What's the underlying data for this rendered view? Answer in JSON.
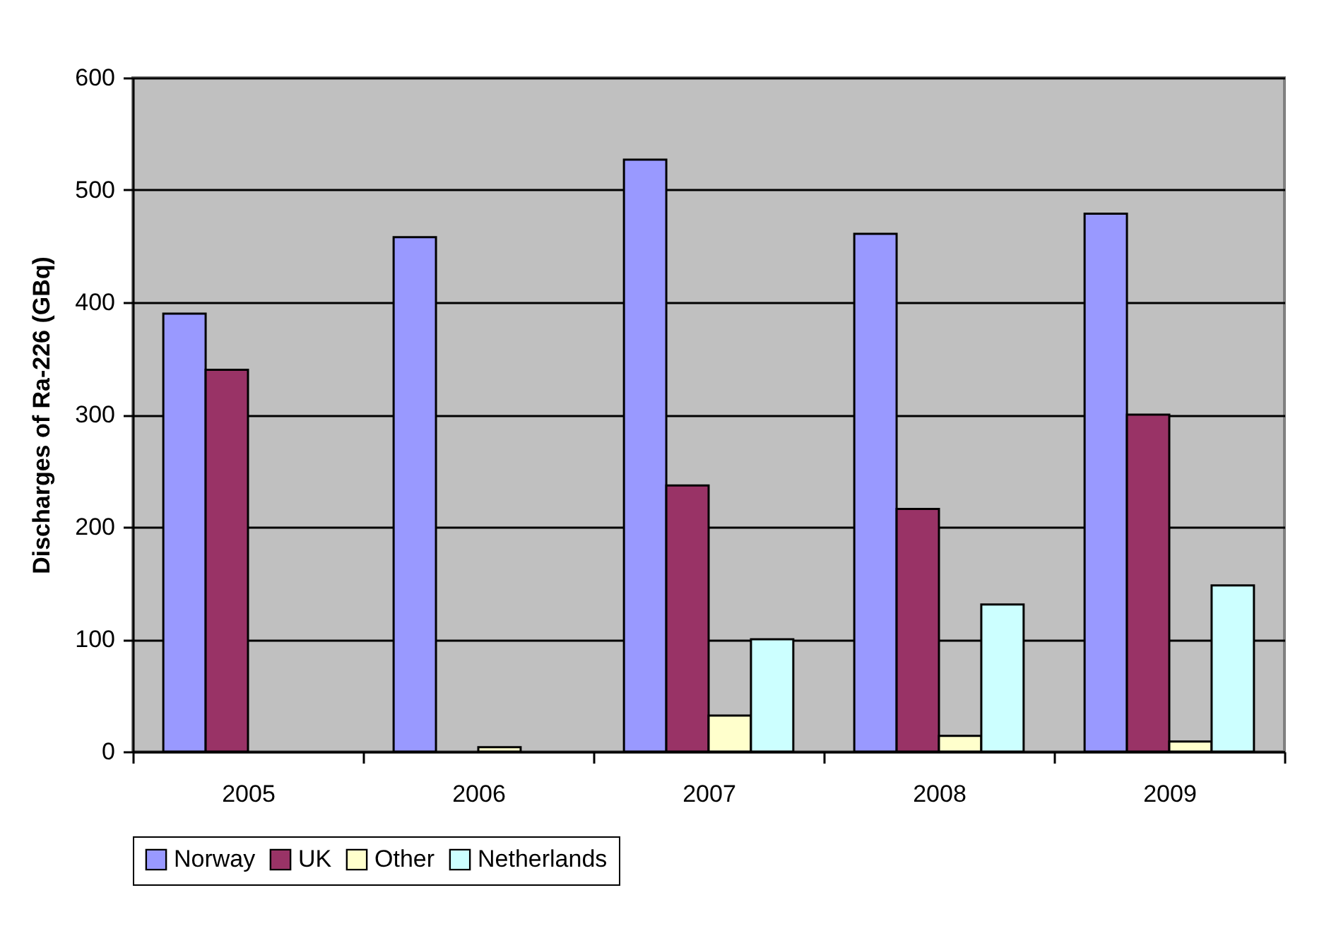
{
  "chart_data": {
    "type": "bar",
    "ylabel": "Discharges of Ra-226 (GBq)",
    "categories": [
      "2005",
      "2006",
      "2007",
      "2008",
      "2009"
    ],
    "series": [
      {
        "name": "Norway",
        "color": "#9999ff",
        "values": [
          390,
          458,
          527,
          461,
          479
        ]
      },
      {
        "name": "UK",
        "color": "#993366",
        "values": [
          340,
          null,
          237,
          216,
          300
        ]
      },
      {
        "name": "Other",
        "color": "#ffffcc",
        "values": [
          null,
          4,
          32,
          14,
          9
        ]
      },
      {
        "name": "Netherlands",
        "color": "#ccffff",
        "values": [
          null,
          null,
          100,
          131,
          148
        ]
      }
    ],
    "ylim": [
      0,
      600
    ],
    "yticks": [
      0,
      100,
      200,
      300,
      400,
      500,
      600
    ],
    "grid": "y",
    "legend": "bottom"
  }
}
